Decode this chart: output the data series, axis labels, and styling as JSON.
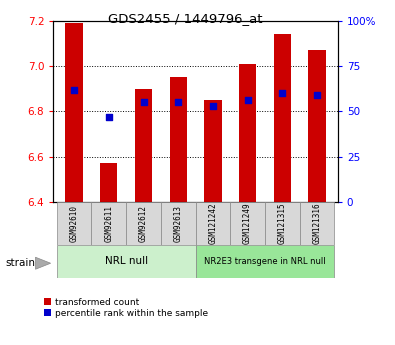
{
  "title": "GDS2455 / 1449796_at",
  "samples": [
    "GSM92610",
    "GSM92611",
    "GSM92612",
    "GSM92613",
    "GSM121242",
    "GSM121249",
    "GSM121315",
    "GSM121316"
  ],
  "transformed_counts": [
    7.19,
    6.57,
    6.9,
    6.95,
    6.85,
    7.01,
    7.14,
    7.07
  ],
  "percentile_ranks": [
    62,
    47,
    55,
    55,
    53,
    56,
    60,
    59
  ],
  "ylim_left": [
    6.4,
    7.2
  ],
  "ylim_right": [
    0,
    100
  ],
  "yticks_left": [
    6.4,
    6.6,
    6.8,
    7.0,
    7.2
  ],
  "yticks_right": [
    0,
    25,
    50,
    75,
    100
  ],
  "bar_color": "#cc0000",
  "dot_color": "#0000cc",
  "group1_label": "NRL null",
  "group2_label": "NR2E3 transgene in NRL null",
  "group1_color": "#ccf0cc",
  "group2_color": "#99e699",
  "group1_indices": [
    0,
    1,
    2,
    3
  ],
  "group2_indices": [
    4,
    5,
    6,
    7
  ],
  "strain_label": "strain",
  "legend_bar": "transformed count",
  "legend_dot": "percentile rank within the sample",
  "ybase": 6.4,
  "bar_width": 0.5
}
